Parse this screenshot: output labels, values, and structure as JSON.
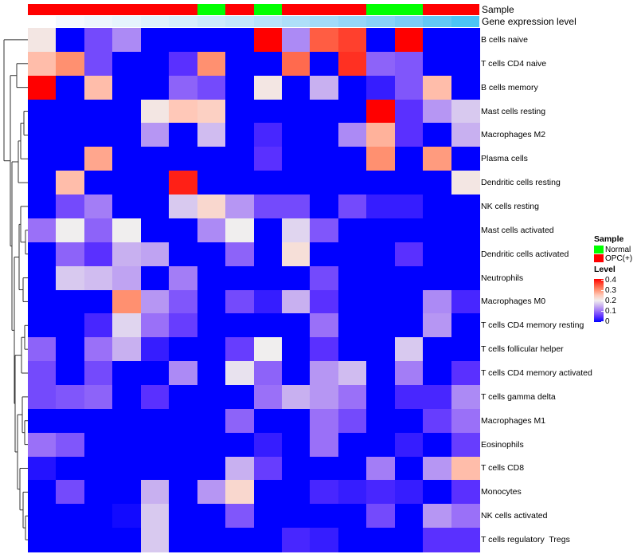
{
  "chart_data": {
    "type": "heatmap",
    "title": "",
    "annotations": {
      "sample_label": "Sample",
      "gene_expression_label": "Gene expression level",
      "sample": [
        "OPC(+)",
        "OPC(+)",
        "OPC(+)",
        "OPC(+)",
        "OPC(+)",
        "OPC(+)",
        "Normal",
        "OPC(+)",
        "Normal",
        "OPC(+)",
        "OPC(+)",
        "OPC(+)",
        "Normal",
        "Normal",
        "OPC(+)",
        "OPC(+)"
      ],
      "gene_expression_colors": [
        "#FFFFFF",
        "#F4F9FE",
        "#EDF6FD",
        "#E6F4FD",
        "#DEF1FC",
        "#D6EEFC",
        "#CCEAFB",
        "#C3E7FB",
        "#B8E3FA",
        "#AEDFF9",
        "#A2DBF9",
        "#95D6F8",
        "#88D2F8",
        "#7ACDF7",
        "#62C8F6",
        "#4CC4F5"
      ]
    },
    "rows": [
      "B cells naive",
      "T cells CD4 naive",
      "B cells memory",
      "Mast cells resting",
      "Macrophages M2",
      "Plasma cells",
      "Dendritic cells resting",
      "NK cells resting",
      "Mast cells activated",
      "Dendritic cells activated",
      "Neutrophils",
      "Macrophages M0",
      "T cells CD4 memory resting",
      "T cells follicular helper",
      "T cells CD4 memory activated",
      "T cells gamma delta",
      "Macrophages M1",
      "Eosinophils",
      "T cells CD8",
      "Monocytes",
      "NK cells activated",
      "T cells regulatory  Tregs"
    ],
    "values": [
      [
        0.21,
        0,
        0.07,
        0.12,
        0,
        0,
        0,
        0,
        0.4,
        0.12,
        0.34,
        0.36,
        0,
        0.4,
        0,
        0
      ],
      [
        0.26,
        0.3,
        0.07,
        0,
        0,
        0.05,
        0.3,
        0,
        0,
        0.33,
        0,
        0.37,
        0.09,
        0.08,
        0,
        0
      ],
      [
        0.4,
        0,
        0.26,
        0,
        0,
        0.09,
        0.07,
        0,
        0.21,
        0,
        0.15,
        0,
        0.03,
        0.08,
        0.26,
        0
      ],
      [
        0,
        0,
        0,
        0,
        0.21,
        0.25,
        0.24,
        0,
        0,
        0,
        0,
        0,
        0.4,
        0.05,
        0.13,
        0.17
      ],
      [
        0,
        0,
        0,
        0,
        0.13,
        0,
        0.16,
        0,
        0.04,
        0,
        0,
        0.12,
        0.27,
        0.05,
        0,
        0.15
      ],
      [
        0,
        0,
        0.28,
        0,
        0,
        0,
        0,
        0,
        0.05,
        0,
        0,
        0,
        0.3,
        0,
        0.29,
        0
      ],
      [
        0,
        0.26,
        0,
        0,
        0,
        0.38,
        0,
        0,
        0,
        0,
        0,
        0,
        0,
        0,
        0,
        0.21
      ],
      [
        0,
        0.07,
        0.11,
        0,
        0,
        0.17,
        0.23,
        0.13,
        0.07,
        0.07,
        0,
        0.07,
        0.03,
        0.03,
        0,
        0
      ],
      [
        0.1,
        0.2,
        0.09,
        0.2,
        0,
        0,
        0.12,
        0.2,
        0,
        0.18,
        0.08,
        0,
        0,
        0,
        0,
        0
      ],
      [
        0,
        0.09,
        0.05,
        0.15,
        0.14,
        0,
        0,
        0.09,
        0,
        0.22,
        0,
        0,
        0,
        0.05,
        0,
        0
      ],
      [
        0,
        0.17,
        0.16,
        0.14,
        0,
        0.11,
        0,
        0,
        0,
        0,
        0.07,
        0,
        0,
        0,
        0,
        0
      ],
      [
        0,
        0,
        0,
        0.3,
        0.13,
        0.08,
        0,
        0.07,
        0.03,
        0.15,
        0.05,
        0,
        0,
        0,
        0.12,
        0.04
      ],
      [
        0,
        0,
        0.04,
        0.18,
        0.1,
        0.06,
        0,
        0,
        0,
        0,
        0.1,
        0,
        0,
        0,
        0.13,
        0
      ],
      [
        0.09,
        0,
        0.1,
        0.15,
        0.03,
        0,
        0,
        0.06,
        0.2,
        0,
        0.05,
        0,
        0,
        0.17,
        0,
        0
      ],
      [
        0.07,
        0,
        0.07,
        0,
        0,
        0.12,
        0,
        0.19,
        0.09,
        0,
        0.13,
        0.16,
        0,
        0.11,
        0,
        0.05
      ],
      [
        0.07,
        0.08,
        0.09,
        0,
        0.05,
        0,
        0,
        0,
        0.1,
        0.15,
        0.13,
        0.1,
        0,
        0.04,
        0.04,
        0.12
      ],
      [
        0,
        0,
        0,
        0,
        0,
        0,
        0,
        0.09,
        0,
        0,
        0.1,
        0.07,
        0,
        0,
        0.06,
        0.1
      ],
      [
        0.1,
        0.08,
        0,
        0,
        0,
        0,
        0,
        0,
        0.03,
        0,
        0.1,
        0,
        0,
        0.03,
        0,
        0.06
      ],
      [
        0.02,
        0,
        0,
        0,
        0,
        0,
        0,
        0.15,
        0.06,
        0,
        0,
        0,
        0.11,
        0,
        0.13,
        0.26
      ],
      [
        0,
        0.07,
        0,
        0,
        0.15,
        0,
        0.13,
        0.23,
        0,
        0,
        0.04,
        0.03,
        0.04,
        0.03,
        0,
        0.05
      ],
      [
        0,
        0,
        0,
        0.01,
        0.17,
        0,
        0,
        0.08,
        0,
        0,
        0,
        0,
        0.07,
        0,
        0.13,
        0.1
      ],
      [
        0,
        0,
        0,
        0,
        0.17,
        0,
        0,
        0,
        0,
        0.04,
        0.03,
        0,
        0,
        0,
        0.05,
        0.05
      ]
    ],
    "color_range": [
      0,
      0.4
    ],
    "colors": {
      "low": "#0000FF",
      "mid": "#F0EEEE",
      "high": "#FF0000"
    },
    "legend": {
      "sample_title": "Sample",
      "sample_items": [
        {
          "label": "Normal",
          "color": "#00FF00"
        },
        {
          "label": "OPC(+)",
          "color": "#FF0000"
        }
      ],
      "level_title": "Level",
      "level_ticks": [
        "0.4",
        "0.3",
        "0.2",
        "0.1",
        "0"
      ],
      "placement": "right"
    },
    "dendrogram": "rows"
  }
}
